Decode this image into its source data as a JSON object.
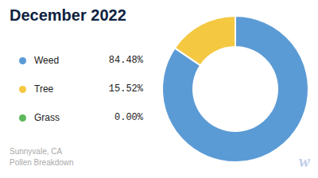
{
  "chart_data": {
    "type": "pie",
    "title": "December 2022",
    "subtitle": "Sunnyvale, CA\nPollen Breakdown",
    "categories": [
      "Weed",
      "Tree",
      "Grass"
    ],
    "values": [
      84.48,
      15.52,
      0.0
    ],
    "value_labels": [
      "84.48%",
      "15.52%",
      "0.00%"
    ],
    "colors": [
      "#5B9BD5",
      "#F5C842",
      "#5CB85C"
    ],
    "legend": "left",
    "annotations": [
      "w"
    ]
  }
}
